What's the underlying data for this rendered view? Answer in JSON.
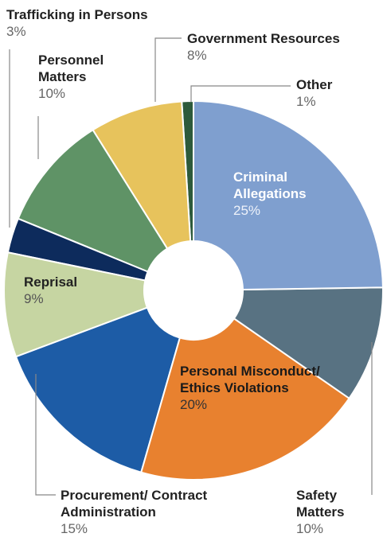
{
  "chart_data": {
    "type": "donut",
    "categories": [
      "Criminal Allegations",
      "Safety Matters",
      "Personal Misconduct/ Ethics Violations",
      "Procurement/ Contract Administration",
      "Reprisal",
      "Trafficking in Persons",
      "Personnel Matters",
      "Government Resources",
      "Other"
    ],
    "values": [
      25,
      10,
      20,
      15,
      9,
      3,
      10,
      8,
      1
    ],
    "value_labels": [
      "25%",
      "10%",
      "20%",
      "15%",
      "9%",
      "3%",
      "10%",
      "8%",
      "1%"
    ],
    "colors": [
      "#7f9fcf",
      "#587282",
      "#e8812f",
      "#1d5ca6",
      "#c6d5a2",
      "#0d2b5c",
      "#5f9366",
      "#e7c35c",
      "#2d5a3b"
    ]
  }
}
